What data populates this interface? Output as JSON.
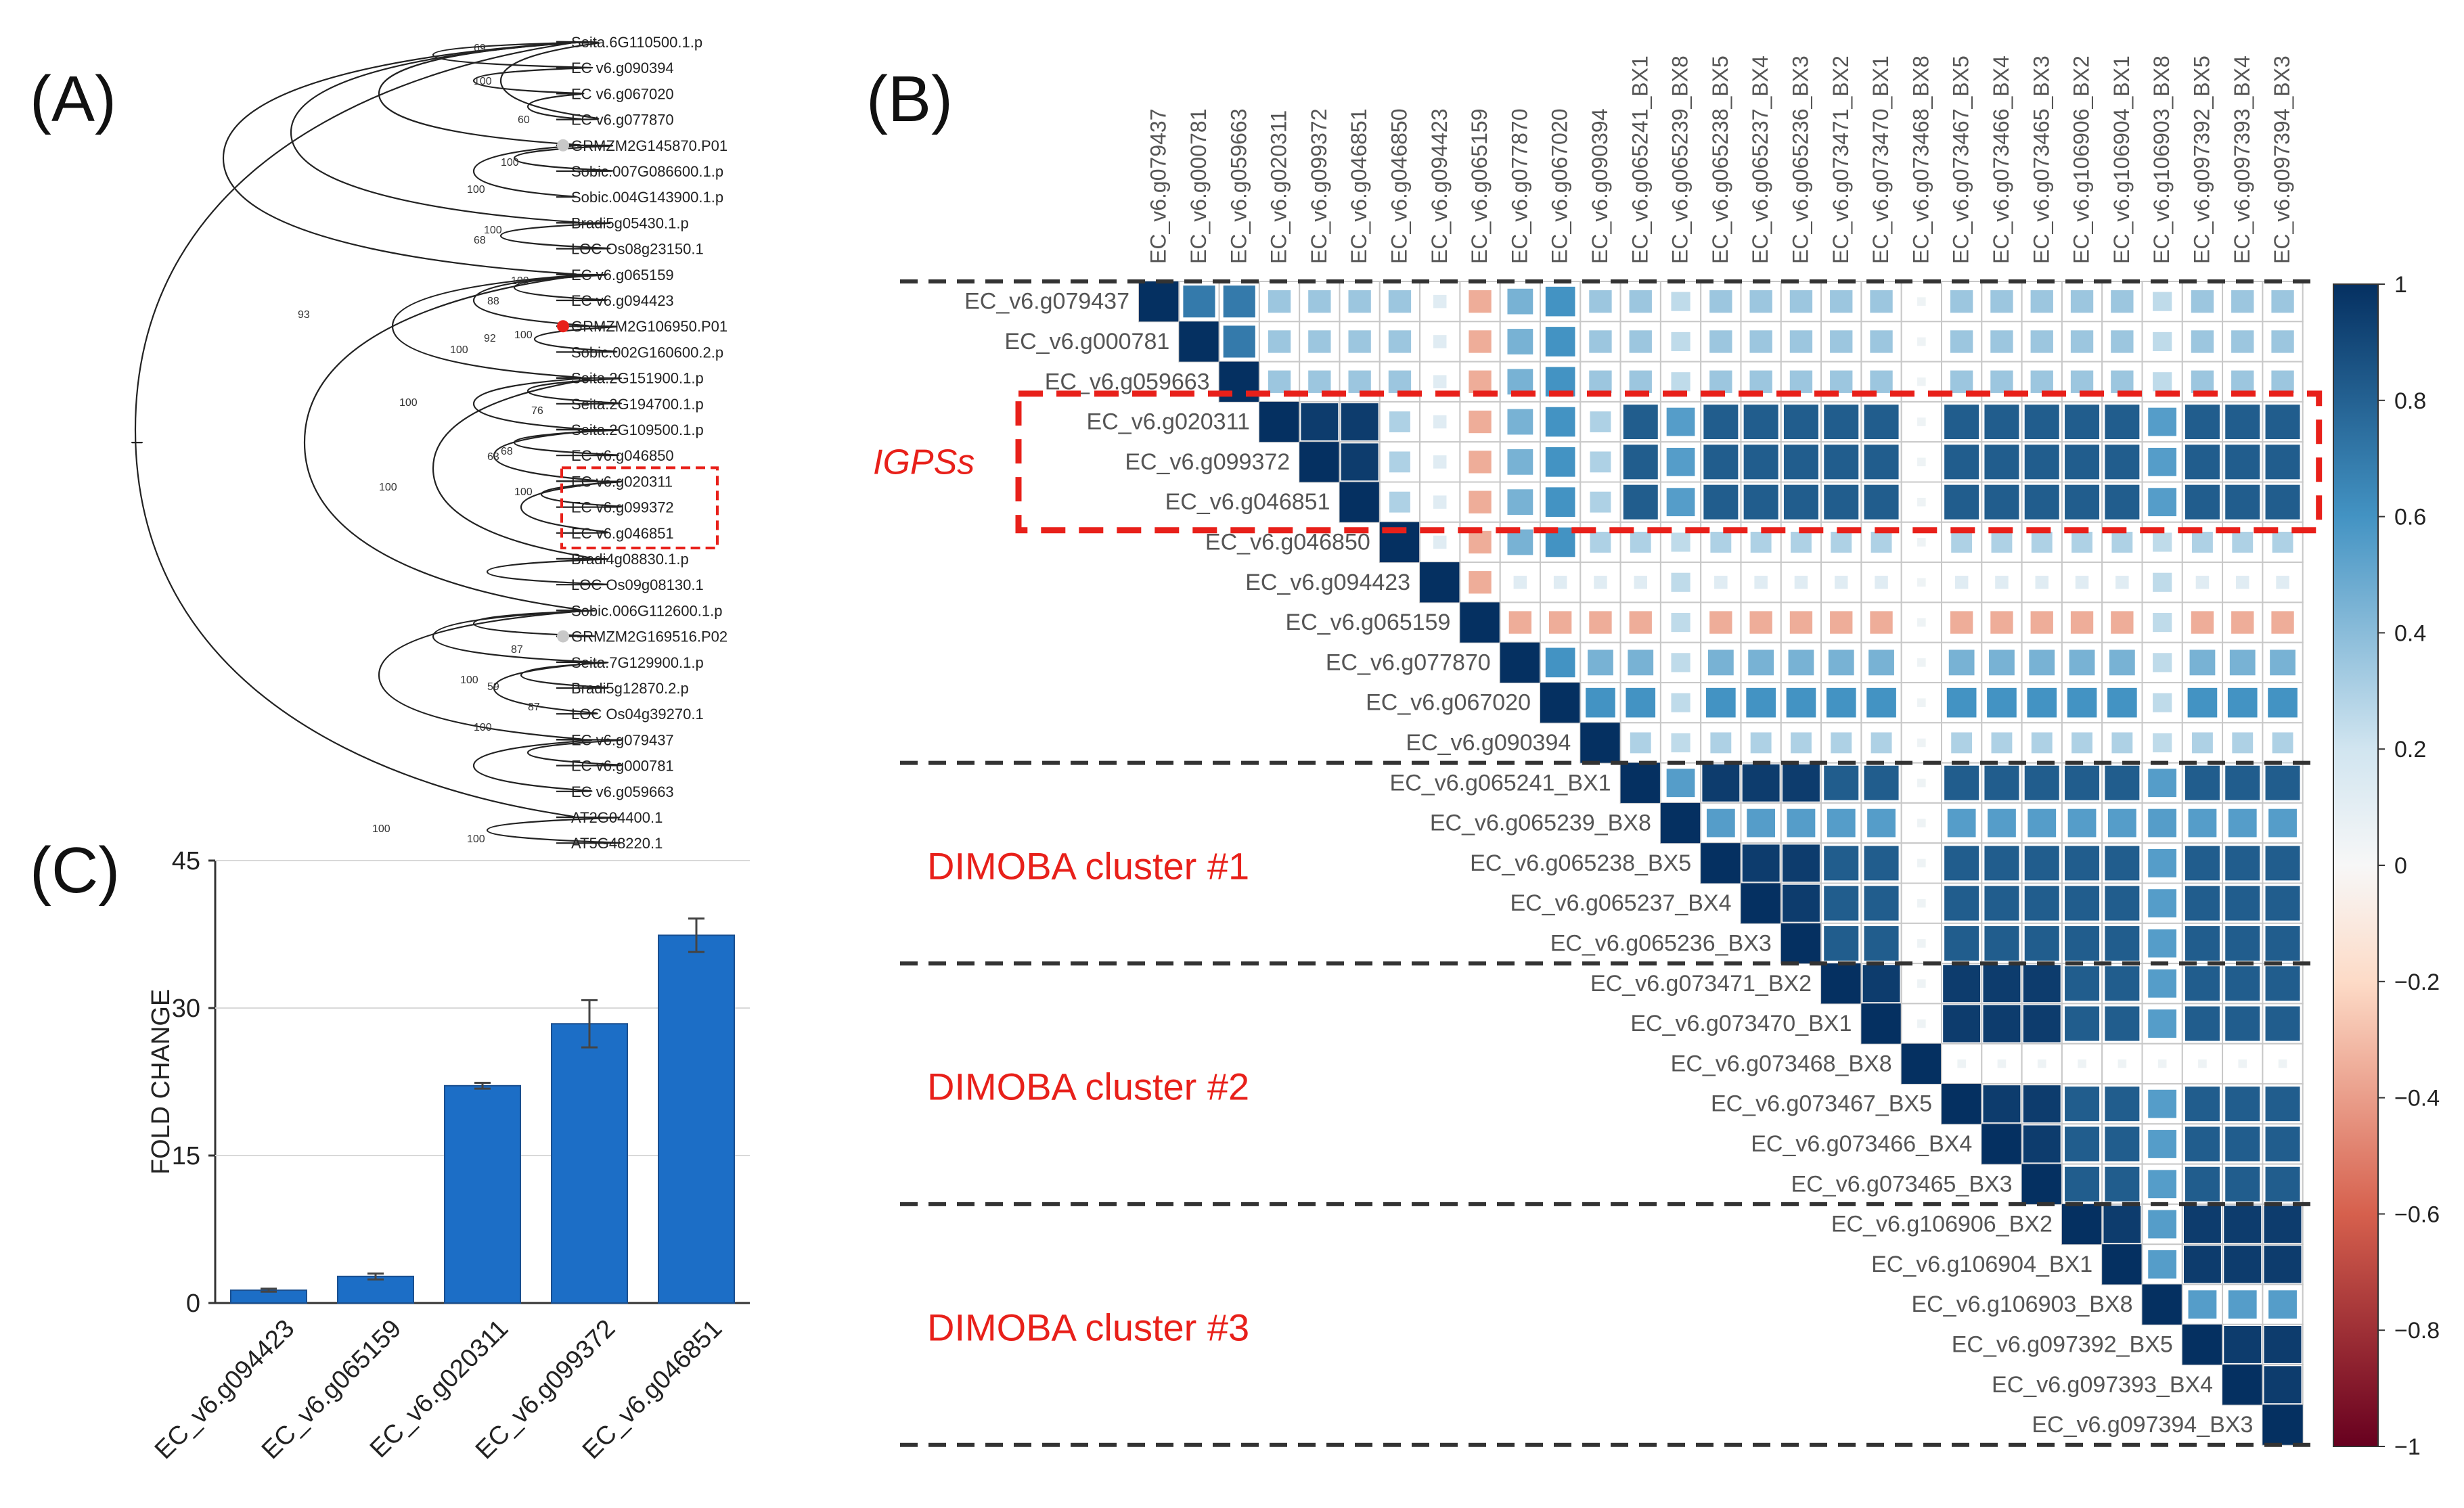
{
  "panels": {
    "a": "(A)",
    "b": "(B)",
    "c": "(C)"
  },
  "tree": {
    "leaves": [
      "Seita.6G110500.1.p",
      "EC v6.g090394",
      "EC v6.g067020",
      "EC v6.g077870",
      "GRMZM2G145870.P01",
      "Sobic.007G086600.1.p",
      "Sobic.004G143900.1.p",
      "Bradi5g05430.1.p",
      "LOC Os08g23150.1",
      "EC v6.g065159",
      "EC v6.g094423",
      "GRMZM2G106950.P01",
      "Sobic.002G160600.2.p",
      "Seita.2G151900.1.p",
      "Seita.2G194700.1.p",
      "Seita.2G109500.1.p",
      "EC v6.g046850",
      "EC v6.g020311",
      "EC v6.g099372",
      "EC v6.g046851",
      "Bradi4g08830.1.p",
      "LOC Os09g08130.1",
      "Sobic.006G112600.1.p",
      "GRMZM2G169516.P02",
      "Seita.7G129900.1.p",
      "Bradi5g12870.2.p",
      "LOC Os04g39270.1",
      "EC v6.g079437",
      "EC v6.g000781",
      "EC v6.g059663",
      "AT2G04400.1",
      "AT5G48220.1"
    ],
    "markers": [
      {
        "leaf": 4,
        "color": "#c8c8c8"
      },
      {
        "leaf": 11,
        "color": "#e8201a"
      },
      {
        "leaf": 23,
        "color": "#c8c8c8"
      }
    ],
    "bootstrap": [
      "69",
      "60",
      "100",
      "100",
      "100",
      "100",
      "68",
      "100",
      "88",
      "100",
      "92",
      "100",
      "76",
      "100",
      "68",
      "100",
      "63",
      "87",
      "59",
      "87",
      "100",
      "100",
      "100",
      "100",
      "93",
      "100"
    ]
  },
  "heatmap": {
    "columns": [
      "EC_v6.g079437",
      "EC_v6.g000781",
      "EC_v6.g059663",
      "EC_v6.g020311",
      "EC_v6.g099372",
      "EC_v6.g046851",
      "EC_v6.g046850",
      "EC_v6.g094423",
      "EC_v6.g065159",
      "EC_v6.g077870",
      "EC_v6.g067020",
      "EC_v6.g090394",
      "EC_v6.g065241_BX1",
      "EC_v6.g065239_BX8",
      "EC_v6.g065238_BX5",
      "EC_v6.g065237_BX4",
      "EC_v6.g065236_BX3",
      "EC_v6.g073471_BX2",
      "EC_v6.g073470_BX1",
      "EC_v6.g073468_BX8",
      "EC_v6.g073467_BX5",
      "EC_v6.g073466_BX4",
      "EC_v6.g073465_BX3",
      "EC_v6.g106906_BX2",
      "EC_v6.g106904_BX1",
      "EC_v6.g106903_BX8",
      "EC_v6.g097392_BX5",
      "EC_v6.g097393_BX4",
      "EC_v6.g097394_BX3"
    ],
    "rows": [
      "EC_v6.g079437",
      "EC_v6.g000781",
      "EC_v6.g059663",
      "EC_v6.g020311",
      "EC_v6.g099372",
      "EC_v6.g046851",
      "EC_v6.g046850",
      "EC_v6.g094423",
      "EC_v6.g065159",
      "EC_v6.g077870",
      "EC_v6.g067020",
      "EC_v6.g090394",
      "EC_v6.g065241_BX1",
      "EC_v6.g065239_BX8",
      "EC_v6.g065238_BX5",
      "EC_v6.g065237_BX4",
      "EC_v6.g065236_BX3",
      "EC_v6.g073471_BX2",
      "EC_v6.g073470_BX1",
      "EC_v6.g073468_BX8",
      "EC_v6.g073467_BX5",
      "EC_v6.g073466_BX4",
      "EC_v6.g073465_BX3",
      "EC_v6.g106906_BX2",
      "EC_v6.g106904_BX1",
      "EC_v6.g106903_BX8",
      "EC_v6.g097392_BX5",
      "EC_v6.g097393_BX4",
      "EC_v6.g097394_BX3"
    ],
    "colorbar_ticks": [
      "1",
      "0.8",
      "0.6",
      "0.4",
      "0.2",
      "0",
      "−0.2",
      "−0.4",
      "−0.6",
      "−0.8",
      "−1"
    ],
    "group_labels": {
      "igps": "IGPSs",
      "c1": "DIMOBA cluster #1",
      "c2": "DIMOBA cluster #2",
      "c3": "DIMOBA cluster #3"
    },
    "colors": {
      "high": "#053061",
      "mid": "#f7f7f7",
      "low": "#67001f",
      "accent": "#e8201a"
    }
  },
  "chart_data": {
    "type": "bar",
    "title": "",
    "xlabel": "",
    "ylabel": "FOLD CHANGE",
    "ylim": [
      0,
      45
    ],
    "yticks": [
      "0",
      "15",
      "30",
      "45"
    ],
    "categories": [
      "EC_v6.g094423",
      "EC_v6.g065159",
      "EC_v6.g020311",
      "EC_v6.g099372",
      "EC_v6.g046851"
    ],
    "values": [
      1.3,
      2.7,
      22.1,
      28.4,
      37.4
    ],
    "errors": [
      0.15,
      0.3,
      0.3,
      2.4,
      1.7
    ],
    "bar_color": "#1c6ec6"
  }
}
